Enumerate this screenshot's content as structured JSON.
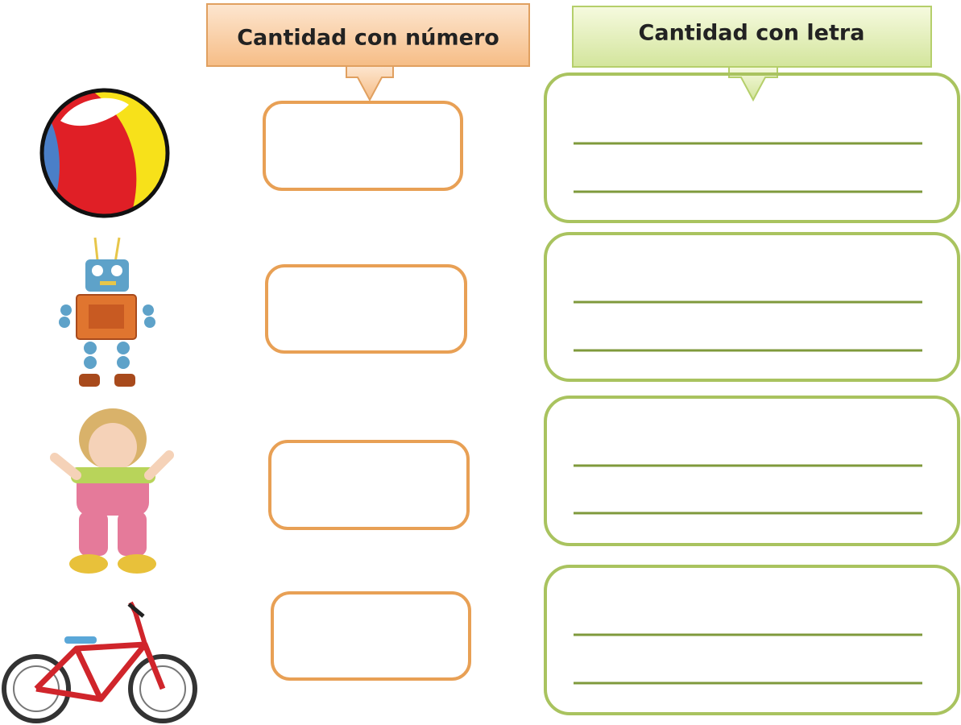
{
  "headers": {
    "number": "Cantidad con número",
    "letter": "Cantidad con letra"
  }
}
